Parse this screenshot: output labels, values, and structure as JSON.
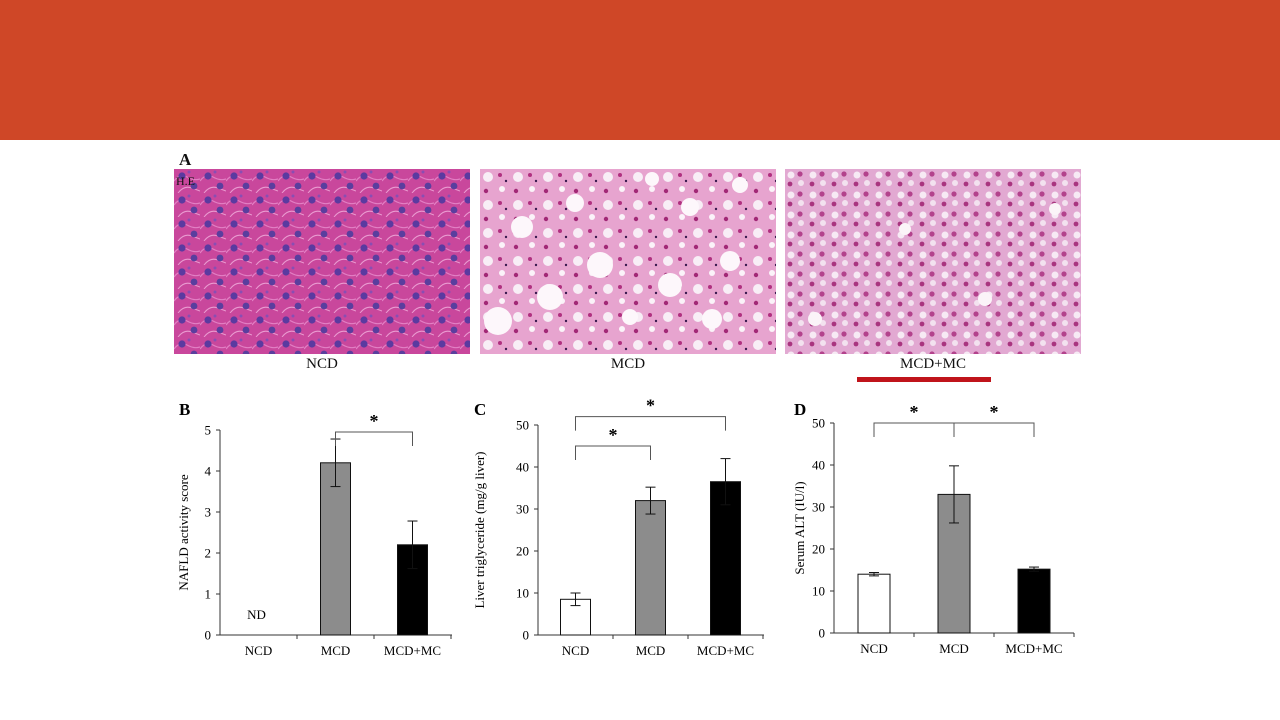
{
  "slide": {
    "banner_color": "#cf4727",
    "accent_underline_color": "#c0141b"
  },
  "panel_a": {
    "letter": "A",
    "stain_label": "H.E",
    "images": [
      {
        "caption": "NCD",
        "description_icon": "histology-normal-liver"
      },
      {
        "caption": "MCD",
        "description_icon": "histology-steatosis-severe"
      },
      {
        "caption": "MCD+MC",
        "description_icon": "histology-steatosis-mild"
      }
    ]
  },
  "chart_data": [
    {
      "panel": "B",
      "type": "bar",
      "categories": [
        "NCD",
        "MCD",
        "MCD+MC"
      ],
      "values": [
        null,
        4.2,
        2.2
      ],
      "errors": [
        null,
        0.58,
        0.58
      ],
      "bar_colors": [
        "#ffffff",
        "#8c8c8c",
        "#000000"
      ],
      "value_labels": [
        "ND",
        "",
        ""
      ],
      "ylabel": "NAFLD activity score",
      "ylim": [
        0,
        5
      ],
      "yticks": [
        0,
        1,
        2,
        3,
        4,
        5
      ],
      "significance": [
        {
          "from": 1,
          "to": 2,
          "label": "*",
          "level": 4.95
        }
      ]
    },
    {
      "panel": "C",
      "type": "bar",
      "categories": [
        "NCD",
        "MCD",
        "MCD+MC"
      ],
      "values": [
        8.5,
        32,
        36.5
      ],
      "errors": [
        1.5,
        3.2,
        5.5
      ],
      "bar_colors": [
        "#ffffff",
        "#8c8c8c",
        "#000000"
      ],
      "ylabel": "Liver triglyceride (mg/g liver)",
      "ylim": [
        0,
        50
      ],
      "yticks": [
        0,
        10,
        20,
        30,
        40,
        50
      ],
      "significance": [
        {
          "from": 0,
          "to": 1,
          "label": "*",
          "level": 45
        },
        {
          "from": 0,
          "to": 2,
          "label": "*",
          "level": 52
        }
      ]
    },
    {
      "panel": "D",
      "type": "bar",
      "categories": [
        "NCD",
        "MCD",
        "MCD+MC"
      ],
      "values": [
        14,
        33,
        15.2
      ],
      "errors": [
        0.4,
        6.8,
        0.5
      ],
      "bar_colors": [
        "#ffffff",
        "#8c8c8c",
        "#000000"
      ],
      "ylabel": "Serum ALT (IU/l)",
      "ylim": [
        0,
        50
      ],
      "yticks": [
        0,
        10,
        20,
        30,
        40,
        50
      ],
      "significance": [
        {
          "from": 0,
          "to": 1,
          "label": "*",
          "level": 50
        },
        {
          "from": 1,
          "to": 2,
          "label": "*",
          "level": 50
        }
      ]
    }
  ]
}
